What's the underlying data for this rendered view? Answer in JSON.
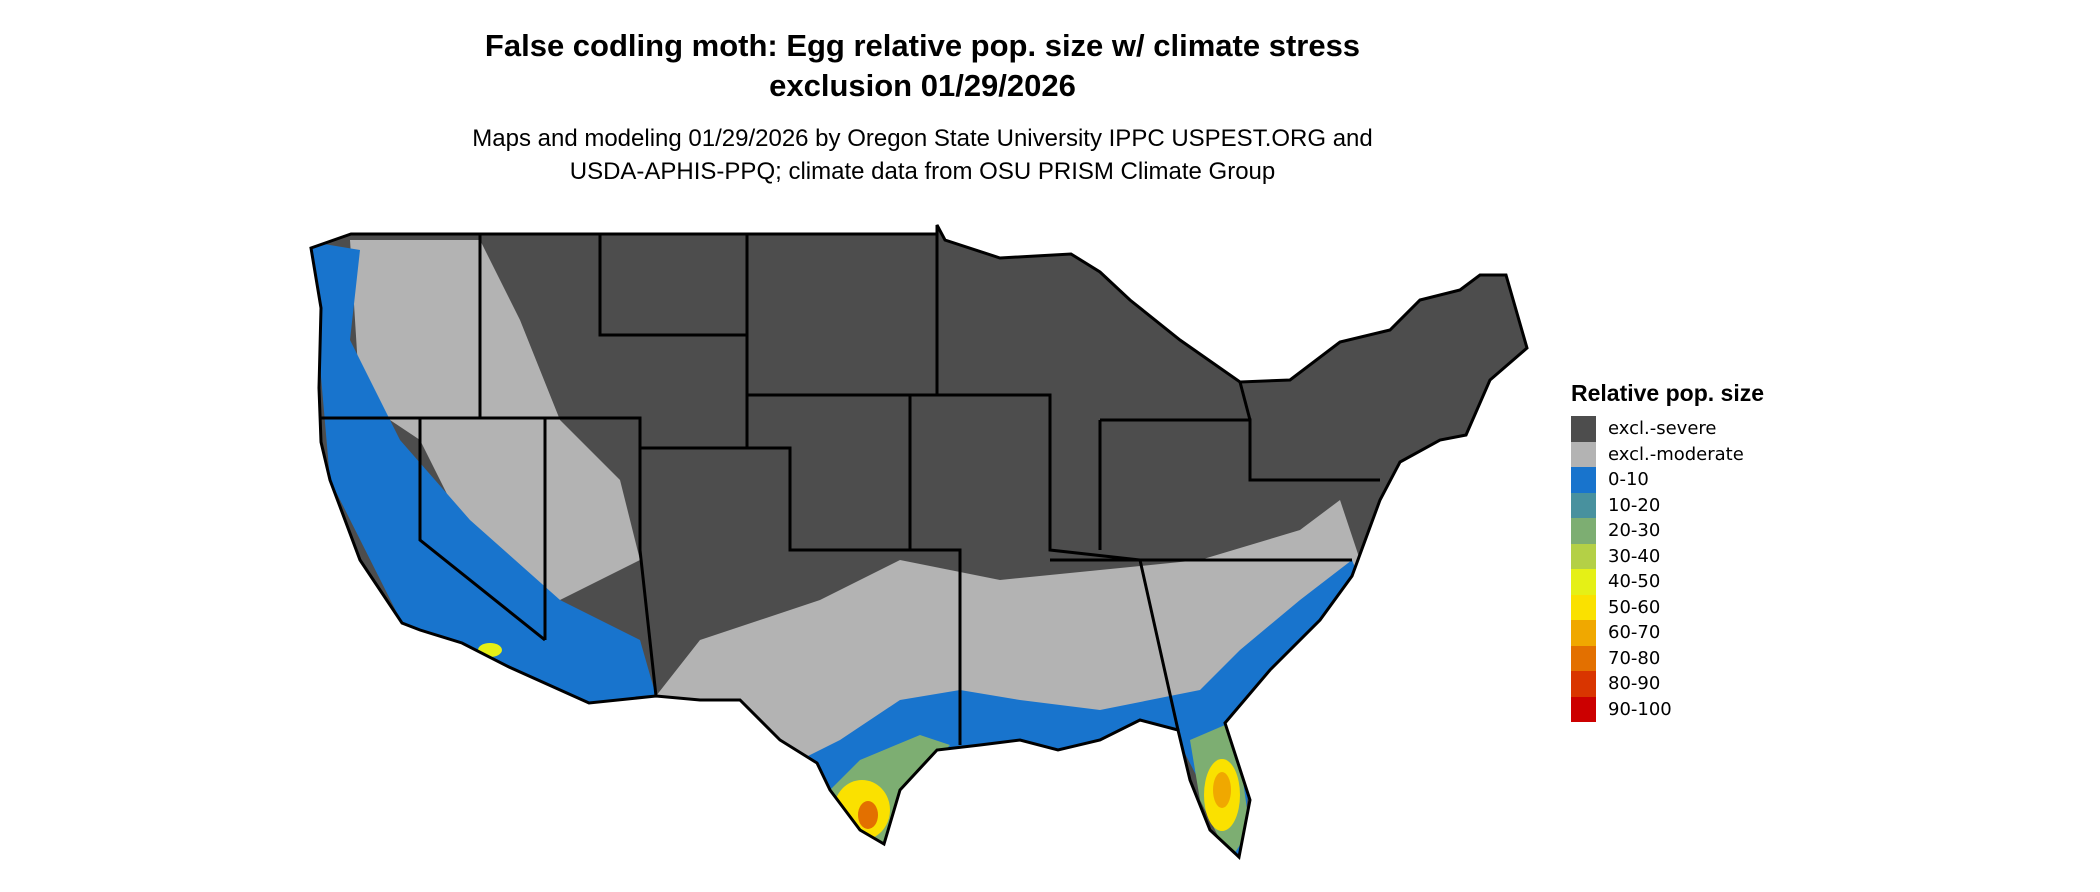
{
  "title_line1": "False codling moth: Egg relative pop. size w/ climate stress",
  "title_line2": "exclusion 01/29/2026",
  "subtitle_line1": "Maps and modeling 01/29/2026 by Oregon State University IPPC USPEST.ORG and",
  "subtitle_line2": "USDA-APHIS-PPQ; climate data from OSU PRISM Climate Group",
  "map": {
    "region": "Contiguous United States",
    "state_borders": true
  },
  "legend": {
    "title": "Relative pop. size",
    "items": [
      {
        "label": "excl.-severe",
        "color": "#4d4d4d"
      },
      {
        "label": "excl.-moderate",
        "color": "#b3b3b3"
      },
      {
        "label": "0-10",
        "color": "#1874cd"
      },
      {
        "label": "10-20",
        "color": "#48919e"
      },
      {
        "label": "20-30",
        "color": "#7dae72"
      },
      {
        "label": "30-40",
        "color": "#b4d046"
      },
      {
        "label": "40-50",
        "color": "#e5f016"
      },
      {
        "label": "50-60",
        "color": "#fae100"
      },
      {
        "label": "60-70",
        "color": "#f0a800"
      },
      {
        "label": "70-80",
        "color": "#e37000"
      },
      {
        "label": "80-90",
        "color": "#d93500"
      },
      {
        "label": "90-100",
        "color": "#cc0000"
      }
    ]
  }
}
